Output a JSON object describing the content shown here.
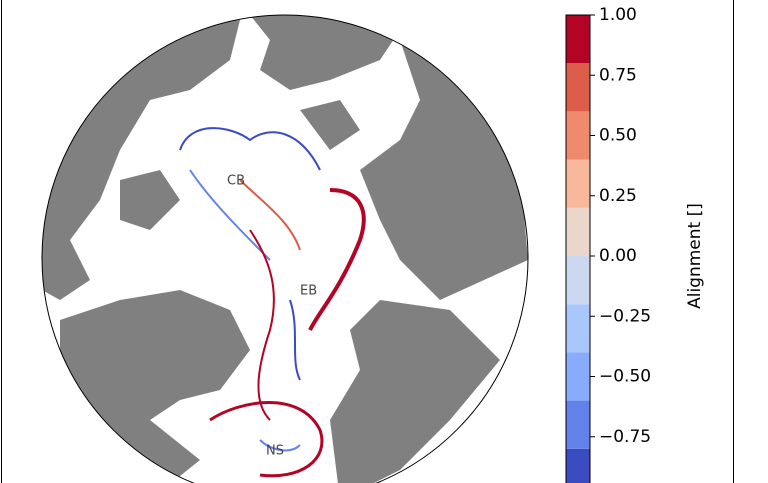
{
  "map": {
    "labels": [
      "CB",
      "EB",
      "NS"
    ]
  },
  "colorbar": {
    "label": "Alignment []",
    "lim": [
      -1,
      1
    ],
    "levels": [
      -1,
      -0.8,
      -0.6,
      -0.4,
      -0.2,
      0,
      0.2,
      0.4,
      0.6,
      0.8,
      1
    ],
    "colors": [
      "#3b4cc0",
      "#6282ea",
      "#88abfd",
      "#aac7fd",
      "#ccd8ef",
      "#ead6cb",
      "#f7b89c",
      "#f08a6c",
      "#dc5d4a",
      "#b40426"
    ],
    "ticks": [
      {
        "value": 1,
        "label": "1.00"
      },
      {
        "value": 0.75,
        "label": "0.75"
      },
      {
        "value": 0.5,
        "label": "0.50"
      },
      {
        "value": 0.25,
        "label": "0.25"
      },
      {
        "value": 0,
        "label": "0.00"
      },
      {
        "value": -0.25,
        "label": "−0.25"
      },
      {
        "value": -0.5,
        "label": "−0.50"
      },
      {
        "value": -0.75,
        "label": "−0.75"
      }
    ]
  }
}
